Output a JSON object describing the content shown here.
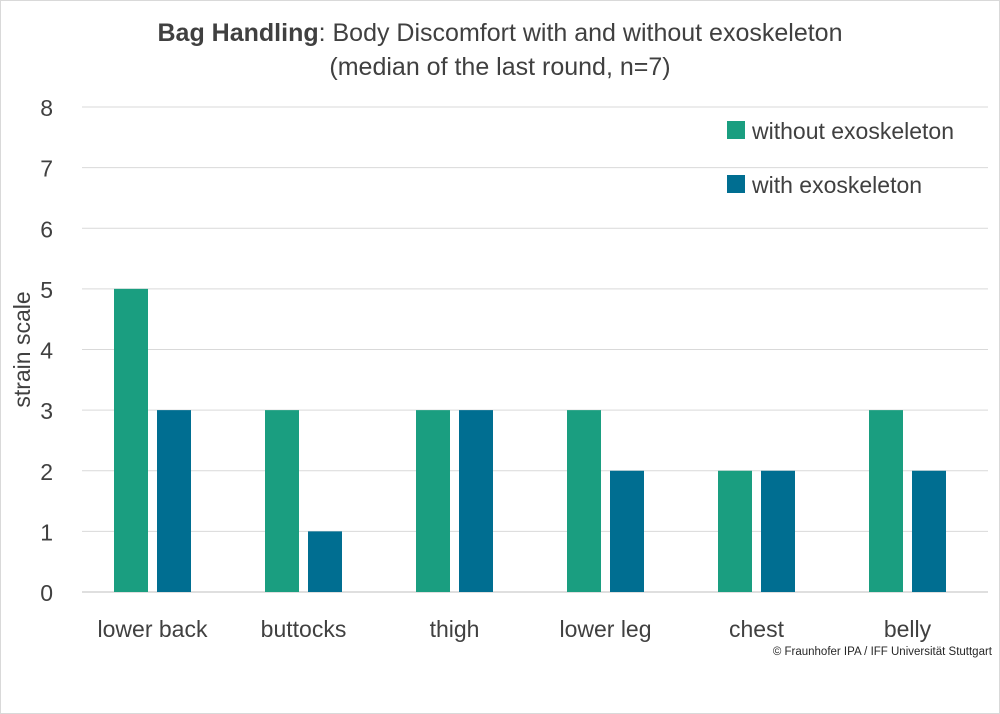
{
  "title": {
    "bold": "Bag Handling",
    "rest": ": Body Discomfort with and without exoskeleton",
    "line2": "(median of the last round, n=7)"
  },
  "copyright": "© Fraunhofer IPA / IFF Universität Stuttgart",
  "chart_data": {
    "type": "bar",
    "title": "Bag Handling: Body Discomfort with and without exoskeleton (median of the last round, n=7)",
    "xlabel": "",
    "ylabel": "strain scale",
    "ylim": [
      0,
      8
    ],
    "yticks": [
      "0",
      "1",
      "2",
      "3",
      "4",
      "5",
      "6",
      "7",
      "8"
    ],
    "grid": true,
    "legend_position": "top-right",
    "categories": [
      "lower back",
      "buttocks",
      "thigh",
      "lower leg",
      "chest",
      "belly"
    ],
    "series": [
      {
        "name": "without exoskeleton",
        "color": "#1a9e80",
        "values": [
          5,
          3,
          3,
          3,
          2,
          3
        ]
      },
      {
        "name": "with exoskeleton",
        "color": "#006e91",
        "values": [
          3,
          1,
          3,
          2,
          2,
          2
        ]
      }
    ]
  }
}
